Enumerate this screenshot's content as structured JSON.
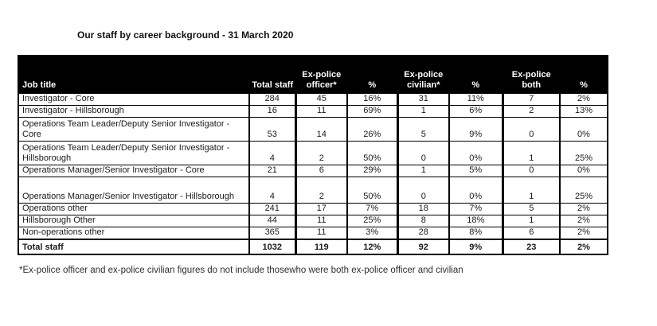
{
  "title": "Our staff by career background - 31 March 2020",
  "table": {
    "columns": [
      "Job title",
      "Total staff",
      "Ex-police officer*",
      "%",
      "Ex-police civilian*",
      "%",
      "Ex-police both",
      "%"
    ],
    "rows": [
      [
        "Investigator - Core",
        "284",
        "45",
        "16%",
        "31",
        "11%",
        "7",
        "2%"
      ],
      [
        "Investigator - Hillsborough",
        "16",
        "11",
        "69%",
        "1",
        "6%",
        "2",
        "13%"
      ],
      [
        "Operations Team Leader/Deputy Senior Investigator - Core",
        "53",
        "14",
        "26%",
        "5",
        "9%",
        "0",
        "0%"
      ],
      [
        "Operations Team Leader/Deputy Senior Investigator - Hillsborough",
        "4",
        "2",
        "50%",
        "0",
        "0%",
        "1",
        "25%"
      ],
      [
        "Operations Manager/Senior Investigator - Core",
        "21",
        "6",
        "29%",
        "1",
        "5%",
        "0",
        "0%"
      ],
      [
        "Operations Manager/Senior Investigator - Hillsborough",
        "4",
        "2",
        "50%",
        "0",
        "0%",
        "1",
        "25%"
      ],
      [
        "Operations other",
        "241",
        "17",
        "7%",
        "18",
        "7%",
        "5",
        "2%"
      ],
      [
        "Hillsborough Other",
        "44",
        "11",
        "25%",
        "8",
        "18%",
        "1",
        "2%"
      ],
      [
        "Non-operations other",
        "365",
        "11",
        "3%",
        "28",
        "8%",
        "6",
        "2%"
      ]
    ],
    "total_row": [
      "Total staff",
      "1032",
      "119",
      "12%",
      "92",
      "9%",
      "23",
      "2%"
    ]
  },
  "footnote": "*Ex-police officer and ex-police civilian figures do not include thosewho were both ex-police officer and civilian",
  "colors": {
    "header_background": "#000000",
    "header_text": "#ffffff",
    "border": "#000000"
  }
}
